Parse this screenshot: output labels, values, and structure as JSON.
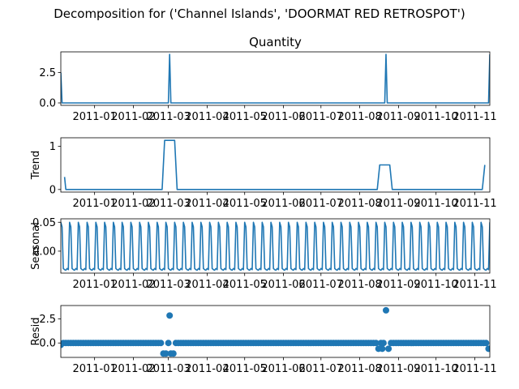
{
  "chart_data": {
    "type": "line",
    "title": "Decomposition for ('Channel Islands', 'DOORMAT RED RETROSPOT')",
    "x_domain": [
      "2010-12-05",
      "2011-11-13"
    ],
    "x_ticks": [
      "2011-01",
      "2011-02",
      "2011-03",
      "2011-04",
      "2011-05",
      "2011-06",
      "2011-07",
      "2011-08",
      "2011-09",
      "2011-10",
      "2011-11"
    ],
    "x_tick_dates": [
      "2011-01-01",
      "2011-02-01",
      "2011-03-01",
      "2011-04-01",
      "2011-05-01",
      "2011-06-01",
      "2011-07-01",
      "2011-08-01",
      "2011-09-01",
      "2011-10-01",
      "2011-11-01"
    ],
    "color": "#1f77b4",
    "panels": [
      {
        "name": "observed",
        "title": "Quantity",
        "ylabel": "",
        "kind": "line",
        "ylim": [
          -0.2,
          4.2
        ],
        "yticks": [
          0.0,
          2.5
        ],
        "ytick_labels": [
          "0.0",
          "2.5"
        ],
        "points": [
          {
            "x": "2010-12-05",
            "y": 2.5
          },
          {
            "x": "2010-12-06",
            "y": 0
          },
          {
            "x": "2011-03-01",
            "y": 0
          },
          {
            "x": "2011-03-02",
            "y": 4
          },
          {
            "x": "2011-03-03",
            "y": 0
          },
          {
            "x": "2011-08-21",
            "y": 0
          },
          {
            "x": "2011-08-22",
            "y": 4
          },
          {
            "x": "2011-08-23",
            "y": 0
          },
          {
            "x": "2011-11-12",
            "y": 0
          },
          {
            "x": "2011-11-13",
            "y": 4
          }
        ]
      },
      {
        "name": "trend",
        "title": "",
        "ylabel": "Trend",
        "kind": "line",
        "ylim": [
          -0.06,
          1.2
        ],
        "yticks": [
          0,
          1
        ],
        "ytick_labels": [
          "0",
          "1"
        ],
        "points": [
          {
            "x": "2010-12-08",
            "y": 0.29
          },
          {
            "x": "2010-12-09",
            "y": 0
          },
          {
            "x": "2011-02-24",
            "y": 0
          },
          {
            "x": "2011-02-26",
            "y": 1.14
          },
          {
            "x": "2011-03-06",
            "y": 1.14
          },
          {
            "x": "2011-03-08",
            "y": 0
          },
          {
            "x": "2011-08-15",
            "y": 0
          },
          {
            "x": "2011-08-17",
            "y": 0.57
          },
          {
            "x": "2011-08-25",
            "y": 0.57
          },
          {
            "x": "2011-08-27",
            "y": 0
          },
          {
            "x": "2011-11-07",
            "y": 0
          },
          {
            "x": "2011-11-09",
            "y": 0.57
          }
        ]
      },
      {
        "name": "seasonal",
        "title": "",
        "ylabel": "Seasonal",
        "kind": "seasonal",
        "ylim": [
          -0.038,
          0.056
        ],
        "yticks": [
          0.0,
          0.05
        ],
        "ytick_labels": [
          "0.00",
          "0.05"
        ],
        "period_days": 7,
        "pattern": [
          0.05,
          0.042,
          -0.03,
          -0.032,
          -0.033,
          -0.03,
          -0.032
        ]
      },
      {
        "name": "resid",
        "title": "",
        "ylabel": "Resid",
        "kind": "scatter",
        "ylim": [
          -1.5,
          3.9
        ],
        "yticks": [
          0.0,
          2.5
        ],
        "ytick_labels": [
          "0.0",
          "2.5"
        ],
        "baseline": {
          "start": "2010-12-05",
          "end": "2011-11-13",
          "y": 0
        },
        "outliers": [
          {
            "x": "2010-12-05",
            "y": -0.2
          },
          {
            "x": "2011-02-25",
            "y": -1.1
          },
          {
            "x": "2011-02-27",
            "y": -1.1
          },
          {
            "x": "2011-03-02",
            "y": 2.86
          },
          {
            "x": "2011-03-03",
            "y": -1.1
          },
          {
            "x": "2011-03-05",
            "y": -1.1
          },
          {
            "x": "2011-08-16",
            "y": -0.6
          },
          {
            "x": "2011-08-19",
            "y": -0.6
          },
          {
            "x": "2011-08-22",
            "y": 3.4
          },
          {
            "x": "2011-08-24",
            "y": -0.6
          },
          {
            "x": "2011-11-12",
            "y": -0.6
          }
        ]
      }
    ]
  }
}
